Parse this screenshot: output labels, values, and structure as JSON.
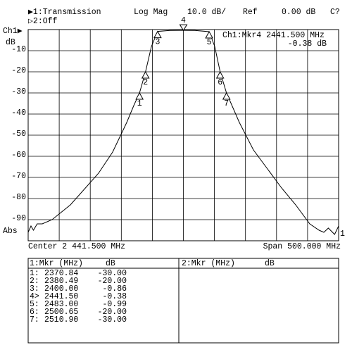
{
  "header": {
    "trace1": "▶1:Transmission",
    "trace2": "▷2:Off",
    "format": "Log Mag",
    "scale": "10.0 dB/",
    "ref_label": "Ref",
    "ref_value": "0.00 dB",
    "status": "C?"
  },
  "chart_data": {
    "type": "line",
    "channel_label": "Ch1▶",
    "y_unit": "dB",
    "y_bottom_label": "Abs",
    "active_marker_readout": "Ch1:Mkr4 2441.500 MHz",
    "active_marker_value": "-0.38 dB",
    "center_label": "Center 2 441.500 MHz",
    "span_label": "Span 500.000 MHz",
    "ref_position_label": "1",
    "xlim": [
      2191.5,
      2691.5
    ],
    "ylim": [
      -100,
      0
    ],
    "xticks": [
      2241.5,
      2291.5,
      2341.5,
      2391.5,
      2441.5,
      2491.5,
      2541.5,
      2591.5,
      2641.5
    ],
    "yticks": [
      -10,
      -20,
      -30,
      -40,
      -50,
      -60,
      -70,
      -80,
      -90
    ],
    "grid": true,
    "series": [
      {
        "name": "Transmission",
        "color": "#000000",
        "x": [
          2191.5,
          2196,
          2200,
          2206,
          2214.2,
          2230,
          2259.5,
          2304.9,
          2327.6,
          2350.2,
          2361.6,
          2370.84,
          2380.49,
          2390,
          2400,
          2420,
          2441.5,
          2460,
          2483,
          2492,
          2500.65,
          2510.9,
          2531.6,
          2554.3,
          2577,
          2599.7,
          2622.3,
          2645,
          2660,
          2667.7,
          2675,
          2685,
          2691.5
        ],
        "values": [
          -96,
          -93,
          -95,
          -92,
          -92,
          -90,
          -83,
          -68,
          -58,
          -44,
          -36,
          -30,
          -20,
          -8,
          -0.86,
          -0.4,
          -0.38,
          -0.4,
          -0.99,
          -8,
          -20,
          -30,
          -44,
          -57,
          -66,
          -75,
          -83,
          -92,
          -95,
          -96,
          -94,
          -97,
          -93
        ]
      }
    ],
    "markers": [
      {
        "label": "1",
        "x": 2370.84,
        "y": -30
      },
      {
        "label": "2",
        "x": 2380.49,
        "y": -20
      },
      {
        "label": "3",
        "x": 2400,
        "y": -0.86
      },
      {
        "label": "4",
        "x": 2441.5,
        "y": -0.38
      },
      {
        "label": "5",
        "x": 2483,
        "y": -0.99
      },
      {
        "label": "6",
        "x": 2500.65,
        "y": -20
      },
      {
        "label": "7",
        "x": 2510.9,
        "y": -30
      }
    ]
  },
  "table": {
    "left_header": [
      "1:Mkr (MHz)",
      "dB"
    ],
    "left_rows": [
      [
        "1:",
        "2370.84",
        "-30.00"
      ],
      [
        "2:",
        "2380.49",
        "-20.00"
      ],
      [
        "3:",
        "2400.00",
        "-0.86"
      ],
      [
        "4>",
        "2441.50",
        "-0.38"
      ],
      [
        "5:",
        "2483.00",
        "-0.99"
      ],
      [
        "6:",
        "2500.65",
        "-20.00"
      ],
      [
        "7:",
        "2510.90",
        "-30.00"
      ]
    ],
    "right_header": [
      "2:Mkr (MHz)",
      "dB"
    ]
  }
}
